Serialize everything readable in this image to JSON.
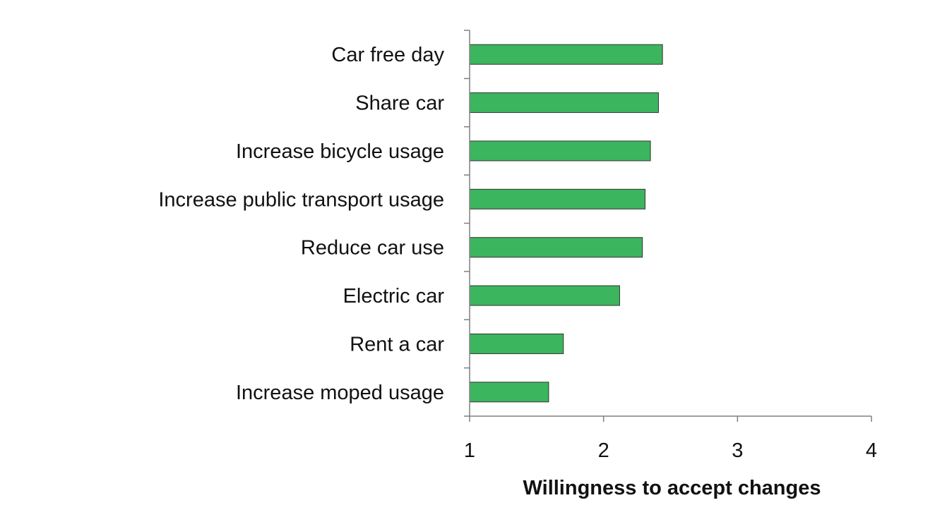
{
  "chart_data": {
    "type": "bar",
    "orientation": "horizontal",
    "categories": [
      "Car free day",
      "Share car",
      "Increase bicycle usage",
      "Increase public transport usage",
      "Reduce car use",
      "Electric car",
      "Rent a car",
      "Increase moped usage"
    ],
    "values": [
      2.44,
      2.41,
      2.35,
      2.31,
      2.29,
      2.12,
      1.7,
      1.59
    ],
    "xlabel": "Willingness to accept changes",
    "ylabel": "",
    "xlim": [
      1,
      4
    ],
    "xticks": [
      "1",
      "2",
      "3",
      "4"
    ],
    "grid": false,
    "legend": "none",
    "bar_color": "#3cb55f"
  }
}
